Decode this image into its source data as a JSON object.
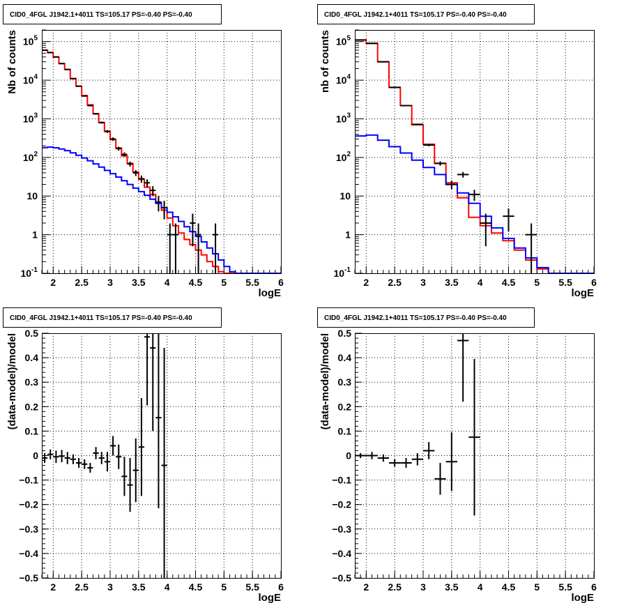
{
  "chart_data": [
    {
      "type": "line",
      "title": "CID0_4FGL J1942.1+4011 TS=105.17 PS=-0.40 PS=-0.40",
      "xlabel": "logE",
      "ylabel": "Nb of counts",
      "xlim": [
        1.8,
        6.0
      ],
      "ylim": [
        0.1,
        200000
      ],
      "yscale": "log",
      "grid": true,
      "x_ticks": [
        "2",
        "2.5",
        "3",
        "3.5",
        "4",
        "4.5",
        "5",
        "5.5",
        "6"
      ],
      "y_ticks": [
        "10^{-1}",
        "1",
        "10",
        "10^{2}",
        "10^{3}",
        "10^{4}",
        "10^{5}"
      ],
      "bin_edges": [
        1.8,
        1.9,
        2.0,
        2.1,
        2.2,
        2.3,
        2.4,
        2.5,
        2.6,
        2.7,
        2.8,
        2.9,
        3.0,
        3.1,
        3.2,
        3.3,
        3.4,
        3.5,
        3.6,
        3.7,
        3.8,
        3.9,
        4.0,
        4.1,
        4.2,
        4.3,
        4.4,
        4.5,
        4.6,
        4.7,
        4.8,
        4.9,
        5.0,
        5.1,
        5.2,
        5.3,
        5.4,
        5.5,
        5.6,
        5.7,
        5.8,
        5.9,
        6.0
      ],
      "series": [
        {
          "color": "#ff0000",
          "style": "step",
          "values": [
            60000,
            52000,
            40000,
            27000,
            19000,
            11000,
            7000,
            4000,
            2300,
            1350,
            800,
            480,
            290,
            175,
            110,
            70,
            42,
            27,
            17,
            11,
            6.8,
            4.3,
            2.7,
            1.7,
            1.1,
            0.75,
            0.55,
            0.4,
            0.3,
            0.2,
            0.15,
            0.11,
            0.1,
            0.1,
            0.1,
            0.1,
            0.1,
            0.1,
            0.1,
            0.1,
            0.1,
            0.1
          ]
        },
        {
          "color": "#0000ff",
          "style": "step",
          "values": [
            180,
            185,
            178,
            165,
            150,
            132,
            114,
            97,
            82,
            68,
            56,
            46,
            38,
            31,
            25,
            20,
            16,
            13,
            10.5,
            8.3,
            6.5,
            5.0,
            3.8,
            2.9,
            2.2,
            1.6,
            1.2,
            0.9,
            0.65,
            0.45,
            0.32,
            0.22,
            0.15,
            0.11,
            0.1,
            0.1,
            0.1,
            0.1,
            0.1,
            0.1,
            0.1,
            0.1
          ]
        }
      ],
      "points": [
        {
          "x": 1.85,
          "y": 60000,
          "yerr": 500
        },
        {
          "x": 1.95,
          "y": 52000,
          "yerr": 450
        },
        {
          "x": 2.05,
          "y": 40000,
          "yerr": 400
        },
        {
          "x": 2.15,
          "y": 27000,
          "yerr": 300
        },
        {
          "x": 2.25,
          "y": 19000,
          "yerr": 250
        },
        {
          "x": 2.35,
          "y": 11000,
          "yerr": 200
        },
        {
          "x": 2.45,
          "y": 7000,
          "yerr": 150
        },
        {
          "x": 2.55,
          "y": 3900,
          "yerr": 120
        },
        {
          "x": 2.65,
          "y": 2200,
          "yerr": 90
        },
        {
          "x": 2.75,
          "y": 1350,
          "yerr": 70
        },
        {
          "x": 2.85,
          "y": 800,
          "yerr": 50
        },
        {
          "x": 2.95,
          "y": 470,
          "yerr": 40
        },
        {
          "x": 3.05,
          "y": 300,
          "yerr": 30
        },
        {
          "x": 3.15,
          "y": 170,
          "yerr": 20
        },
        {
          "x": 3.25,
          "y": 120,
          "yerr": 15
        },
        {
          "x": 3.35,
          "y": 68,
          "yerr": 10
        },
        {
          "x": 3.45,
          "y": 40,
          "yerr": 7
        },
        {
          "x": 3.55,
          "y": 28,
          "yerr": 6
        },
        {
          "x": 3.65,
          "y": 22,
          "yerr": 5
        },
        {
          "x": 3.75,
          "y": 14,
          "yerr": 4
        },
        {
          "x": 3.85,
          "y": 7,
          "yerr": 3
        },
        {
          "x": 3.95,
          "y": 5,
          "yerr": 2.5
        },
        {
          "x": 4.05,
          "y": 1,
          "yerr": 0.95
        },
        {
          "x": 4.15,
          "y": 1,
          "yerr": 0.95
        },
        {
          "x": 4.45,
          "y": 2,
          "yerr": 1.5
        },
        {
          "x": 4.55,
          "y": 1,
          "yerr": 0.95
        },
        {
          "x": 4.85,
          "y": 1,
          "yerr": 0.95
        }
      ]
    },
    {
      "type": "line",
      "title": "CID0_4FGL J1942.1+4011 TS=105.17 PS=-0.40 PS=-0.40",
      "xlabel": "logE",
      "ylabel": "nb of counts",
      "xlim": [
        1.8,
        6.0
      ],
      "ylim": [
        0.1,
        200000
      ],
      "yscale": "log",
      "grid": true,
      "x_ticks": [
        "2",
        "2.5",
        "3",
        "3.5",
        "4",
        "4.5",
        "5",
        "5.5",
        "6"
      ],
      "y_ticks": [
        "10^{-1}",
        "1",
        "10",
        "10^{2}",
        "10^{3}",
        "10^{4}",
        "10^{5}"
      ],
      "bin_edges": [
        1.8,
        2.0,
        2.2,
        2.4,
        2.6,
        2.8,
        3.0,
        3.2,
        3.4,
        3.6,
        3.8,
        4.0,
        4.2,
        4.4,
        4.6,
        4.8,
        5.0,
        5.2,
        5.4,
        5.6,
        5.8,
        6.0
      ],
      "series": [
        {
          "color": "#ff0000",
          "style": "step",
          "values": [
            110000,
            90000,
            30000,
            6500,
            2200,
            700,
            220,
            70,
            22,
            9,
            2.8,
            1.7,
            1.1,
            0.7,
            0.4,
            0.22,
            0.13,
            0.1,
            0.1,
            0.1,
            0.1
          ]
        },
        {
          "color": "#0000ff",
          "style": "step",
          "values": [
            360,
            380,
            280,
            190,
            130,
            85,
            55,
            36,
            20,
            12,
            6.5,
            3.0,
            1.5,
            0.8,
            0.45,
            0.25,
            0.14,
            0.1,
            0.1,
            0.1,
            0.1
          ]
        }
      ],
      "points": [
        {
          "x": 1.9,
          "y": 110000,
          "yerr": 500
        },
        {
          "x": 2.1,
          "y": 90000,
          "yerr": 450
        },
        {
          "x": 2.3,
          "y": 30000,
          "yerr": 250
        },
        {
          "x": 2.5,
          "y": 6500,
          "yerr": 100
        },
        {
          "x": 2.7,
          "y": 2200,
          "yerr": 60
        },
        {
          "x": 2.9,
          "y": 720,
          "yerr": 35
        },
        {
          "x": 3.1,
          "y": 210,
          "yerr": 15
        },
        {
          "x": 3.3,
          "y": 70,
          "yerr": 9
        },
        {
          "x": 3.5,
          "y": 20,
          "yerr": 5
        },
        {
          "x": 3.7,
          "y": 36,
          "yerr": 6
        },
        {
          "x": 3.9,
          "y": 11,
          "yerr": 3.5
        },
        {
          "x": 4.1,
          "y": 2,
          "yerr": 1.5
        },
        {
          "x": 4.5,
          "y": 3,
          "yerr": 1.8
        },
        {
          "x": 4.9,
          "y": 1,
          "yerr": 0.95
        }
      ]
    },
    {
      "type": "scatter",
      "title": "CID0_4FGL J1942.1+4011 TS=105.17 PS=-0.40 PS=-0.40",
      "xlabel": "logE",
      "ylabel": "(data-model)/model",
      "xlim": [
        1.8,
        6.0
      ],
      "ylim": [
        -0.5,
        0.5
      ],
      "grid": true,
      "x_ticks": [
        "2",
        "2.5",
        "3",
        "3.5",
        "4",
        "4.5",
        "5",
        "5.5",
        "6"
      ],
      "y_ticks": [
        "−0.5",
        "−0.4",
        "−0.3",
        "−0.2",
        "−0.1",
        "0",
        "0.1",
        "0.2",
        "0.3",
        "0.4",
        "0.5"
      ],
      "xerr": 0.05,
      "points": [
        {
          "x": 1.85,
          "y": -0.01,
          "yerr": 0.02
        },
        {
          "x": 1.95,
          "y": 0.005,
          "yerr": 0.02
        },
        {
          "x": 2.05,
          "y": -0.005,
          "yerr": 0.025
        },
        {
          "x": 2.15,
          "y": -0.002,
          "yerr": 0.025
        },
        {
          "x": 2.25,
          "y": -0.01,
          "yerr": 0.025
        },
        {
          "x": 2.35,
          "y": -0.015,
          "yerr": 0.02
        },
        {
          "x": 2.45,
          "y": -0.03,
          "yerr": 0.02
        },
        {
          "x": 2.55,
          "y": -0.035,
          "yerr": 0.02
        },
        {
          "x": 2.65,
          "y": -0.05,
          "yerr": 0.02
        },
        {
          "x": 2.75,
          "y": 0.01,
          "yerr": 0.025
        },
        {
          "x": 2.85,
          "y": -0.01,
          "yerr": 0.025
        },
        {
          "x": 2.95,
          "y": -0.025,
          "yerr": 0.04
        },
        {
          "x": 3.05,
          "y": 0.04,
          "yerr": 0.04
        },
        {
          "x": 3.15,
          "y": -0.005,
          "yerr": 0.05
        },
        {
          "x": 3.25,
          "y": -0.085,
          "yerr": 0.08
        },
        {
          "x": 3.35,
          "y": -0.12,
          "yerr": 0.11
        },
        {
          "x": 3.45,
          "y": -0.06,
          "yerr": 0.13
        },
        {
          "x": 3.55,
          "y": 0.035,
          "yerr": 0.2
        },
        {
          "x": 3.65,
          "y": 0.485,
          "yerr": 0.28
        },
        {
          "x": 3.75,
          "y": 0.44,
          "yerr": 0.34
        },
        {
          "x": 3.85,
          "y": 0.155,
          "yerr": 0.37
        },
        {
          "x": 3.95,
          "y": -0.04,
          "yerr": 0.48
        }
      ]
    },
    {
      "type": "scatter",
      "title": "CID0_4FGL J1942.1+4011 TS=105.17 PS=-0.40 PS=-0.40",
      "xlabel": "logE",
      "ylabel": "(data-model)/model",
      "xlim": [
        1.8,
        6.0
      ],
      "ylim": [
        -0.5,
        0.5
      ],
      "grid": true,
      "x_ticks": [
        "2",
        "2.5",
        "3",
        "3.5",
        "4",
        "4.5",
        "5",
        "5.5",
        "6"
      ],
      "y_ticks": [
        "−0.5",
        "−0.4",
        "−0.3",
        "−0.2",
        "−0.1",
        "0",
        "0.1",
        "0.2",
        "0.3",
        "0.4",
        "0.5"
      ],
      "xerr": 0.1,
      "points": [
        {
          "x": 1.9,
          "y": 0.0,
          "yerr": 0.01
        },
        {
          "x": 2.1,
          "y": 0.0,
          "yerr": 0.015
        },
        {
          "x": 2.3,
          "y": -0.01,
          "yerr": 0.015
        },
        {
          "x": 2.5,
          "y": -0.03,
          "yerr": 0.015
        },
        {
          "x": 2.7,
          "y": -0.03,
          "yerr": 0.02
        },
        {
          "x": 2.9,
          "y": -0.015,
          "yerr": 0.025
        },
        {
          "x": 3.1,
          "y": 0.02,
          "yerr": 0.035
        },
        {
          "x": 3.3,
          "y": -0.095,
          "yerr": 0.065
        },
        {
          "x": 3.5,
          "y": -0.025,
          "yerr": 0.12
        },
        {
          "x": 3.7,
          "y": 0.47,
          "yerr": 0.25
        },
        {
          "x": 3.9,
          "y": 0.075,
          "yerr": 0.32
        }
      ]
    }
  ]
}
